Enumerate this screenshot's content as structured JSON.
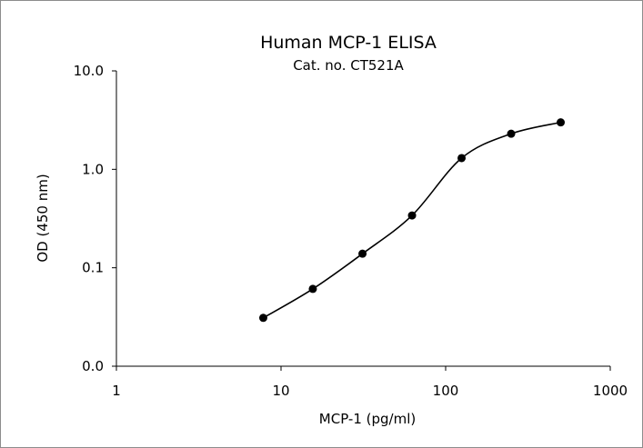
{
  "chart_data": {
    "type": "line",
    "title": "Human MCP-1 ELISA",
    "subtitle": "Cat. no. CT521A",
    "xlabel": "MCP-1 (pg/ml)",
    "ylabel": "OD (450 nm)",
    "x_scale": "log",
    "y_scale": "log",
    "xlim": [
      1,
      1000
    ],
    "ylim": [
      0.01,
      10
    ],
    "x_ticks": [
      1,
      10,
      100,
      1000
    ],
    "x_tick_labels": [
      "1",
      "10",
      "100",
      "1000"
    ],
    "y_ticks": [
      0.01,
      0.1,
      1,
      10
    ],
    "y_tick_labels": [
      "0.0",
      "0.1",
      "1.0",
      "10.0"
    ],
    "grid": false,
    "legend": "none",
    "series": [
      {
        "x": [
          7.8,
          15.6,
          31.25,
          62.5,
          125,
          250,
          500
        ],
        "y": [
          0.031,
          0.061,
          0.139,
          0.34,
          1.3,
          2.3,
          3.0
        ],
        "marker": "circle",
        "color": "#000000",
        "line": "smooth"
      }
    ]
  }
}
